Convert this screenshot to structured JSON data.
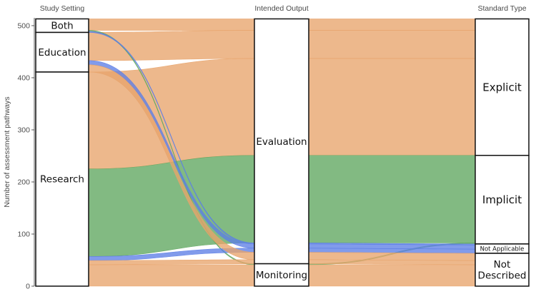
{
  "chart_data": {
    "type": "alluvial",
    "ylabel": "Number of assessment pathways",
    "ylim": [
      0,
      515
    ],
    "yticks": [
      0,
      100,
      200,
      300,
      400,
      500
    ],
    "axes": [
      "Study Setting",
      "Intended Output",
      "Standard Type"
    ],
    "strata": {
      "Study Setting": [
        {
          "label": "Both",
          "value": 26
        },
        {
          "label": "Education",
          "value": 76
        },
        {
          "label": "Research",
          "value": 411
        }
      ],
      "Intended Output": [
        {
          "label": "Evaluation",
          "value": 470
        },
        {
          "label": "Monitoring",
          "value": 43
        }
      ],
      "Standard Type": [
        {
          "label": "Explicit",
          "value": 262
        },
        {
          "label": "Implicit",
          "value": 170
        },
        {
          "label": "Not Applicable",
          "value": 18
        },
        {
          "label": "Not Described",
          "value": 63
        }
      ]
    },
    "flows": [
      {
        "setting": "Both",
        "output": "Evaluation",
        "standard": "Explicit",
        "value": 22
      },
      {
        "setting": "Education",
        "output": "Evaluation",
        "standard": "Explicit",
        "value": 54
      },
      {
        "setting": "Research",
        "output": "Evaluation",
        "standard": "Explicit",
        "value": 186
      },
      {
        "setting": "Both",
        "output": "Monitoring",
        "standard": "Implicit",
        "value": 2
      },
      {
        "setting": "Research",
        "output": "Evaluation",
        "standard": "Implicit",
        "value": 168
      },
      {
        "setting": "Both",
        "output": "Evaluation",
        "standard": "Not Applicable",
        "value": 2
      },
      {
        "setting": "Education",
        "output": "Evaluation",
        "standard": "Not Applicable",
        "value": 8
      },
      {
        "setting": "Research",
        "output": "Evaluation",
        "standard": "Not Applicable",
        "value": 8
      },
      {
        "setting": "Education",
        "output": "Evaluation",
        "standard": "Not Described",
        "value": 14
      },
      {
        "setting": "Research",
        "output": "Evaluation",
        "standard": "Not Described",
        "value": 8
      },
      {
        "setting": "Research",
        "output": "Monitoring",
        "standard": "Not Described",
        "value": 41
      }
    ],
    "colors": {
      "Evaluation": "#e8a46c",
      "Explicit": "#e8a46c",
      "Implicit": "#5fa75f",
      "Not Applicable": "#5d7fe6",
      "Not Described": "#e8a46c",
      "Monitoring": "#5fa75f"
    },
    "grid": false
  }
}
